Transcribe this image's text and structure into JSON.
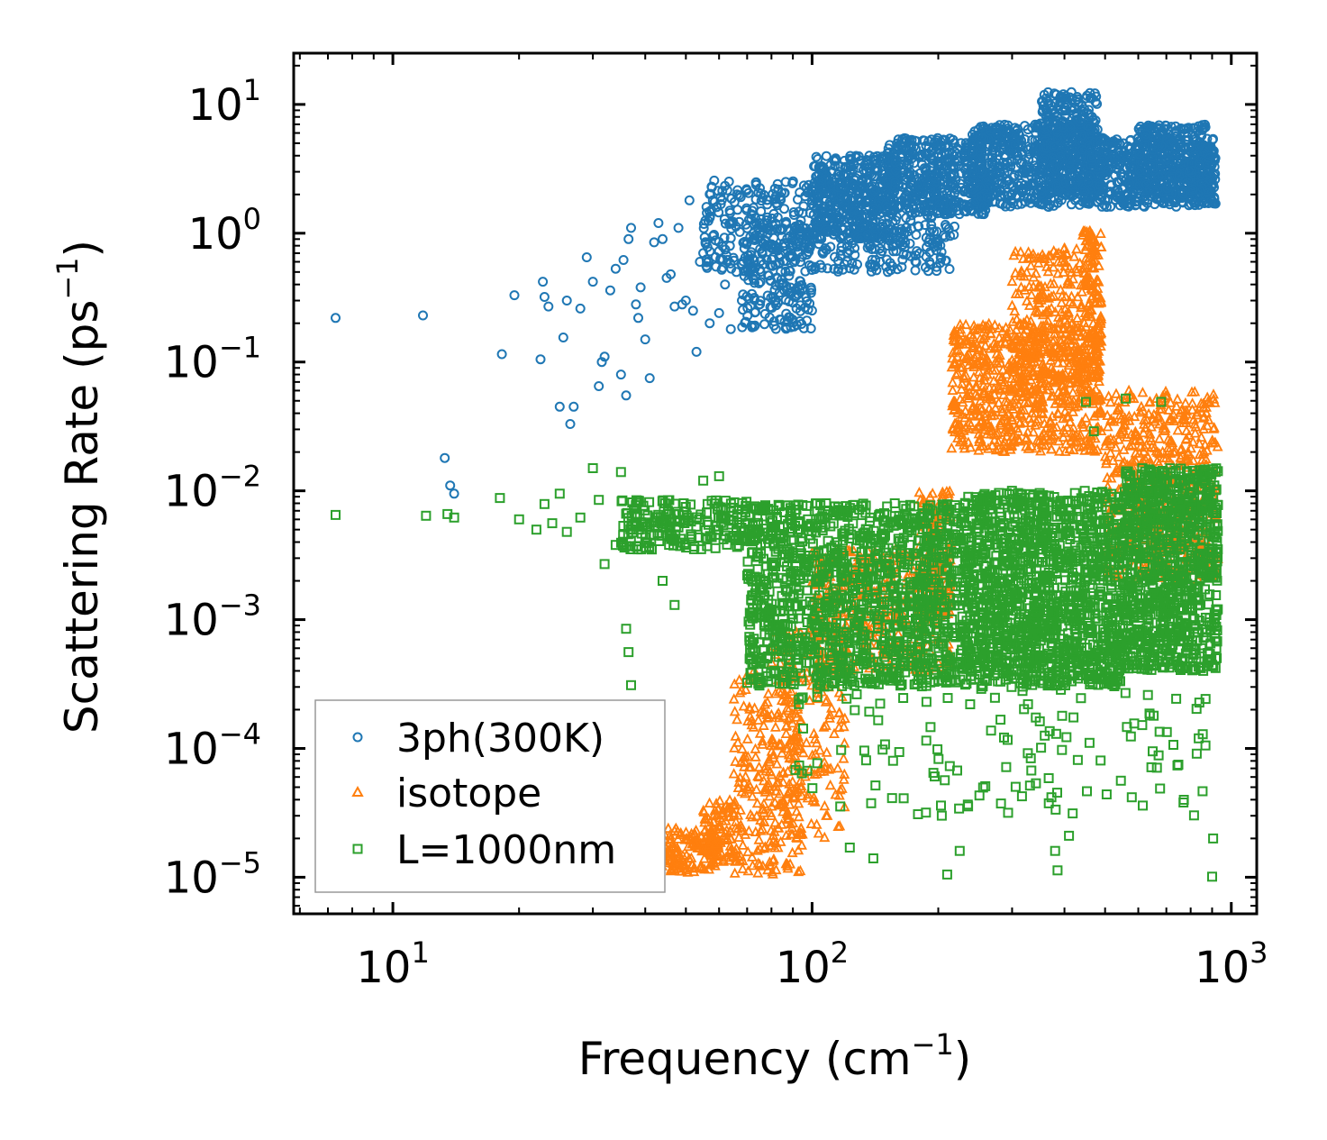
{
  "chart_data": {
    "type": "scatter",
    "xlabel": "Frequency (cm",
    "xlabel_sup": "−1",
    "xlabel_end": ")",
    "ylabel": "Scattering Rate (ps",
    "ylabel_sup": "−1",
    "ylabel_end": ")",
    "xscale": "log",
    "yscale": "log",
    "xlim": [
      5.8,
      1150
    ],
    "ylim": [
      5.2e-06,
      25
    ],
    "x_ticks": [
      {
        "value": 10,
        "base": "10",
        "exp": "1"
      },
      {
        "value": 100,
        "base": "10",
        "exp": "2"
      },
      {
        "value": 1000,
        "base": "10",
        "exp": "3"
      }
    ],
    "y_ticks": [
      {
        "value": 10,
        "base": "10",
        "exp": "1"
      },
      {
        "value": 1,
        "base": "10",
        "exp": "0"
      },
      {
        "value": 0.1,
        "base": "10",
        "exp": "−1"
      },
      {
        "value": 0.01,
        "base": "10",
        "exp": "−2"
      },
      {
        "value": 0.001,
        "base": "10",
        "exp": "−3"
      },
      {
        "value": 0.0001,
        "base": "10",
        "exp": "−4"
      },
      {
        "value": 1e-05,
        "base": "10",
        "exp": "−5"
      }
    ],
    "legend_position": "bottom-left",
    "series": [
      {
        "name": "3ph(300K)",
        "marker": "circle",
        "color": "#1f77b4",
        "points": [
          [
            7.3,
            0.22
          ],
          [
            11.8,
            0.23
          ],
          [
            13.3,
            0.018
          ],
          [
            13.7,
            0.011
          ],
          [
            14.0,
            0.0095
          ],
          [
            18.2,
            0.115
          ],
          [
            19.5,
            0.33
          ],
          [
            22.5,
            0.105
          ],
          [
            22.8,
            0.42
          ],
          [
            23.0,
            0.32
          ],
          [
            23.5,
            0.27
          ],
          [
            25,
            0.045
          ],
          [
            25.5,
            0.155
          ],
          [
            26,
            0.3
          ],
          [
            26.5,
            0.033
          ],
          [
            27,
            0.045
          ],
          [
            28,
            0.26
          ],
          [
            29,
            0.65
          ],
          [
            30,
            0.42
          ],
          [
            31,
            0.065
          ],
          [
            31.5,
            0.1
          ],
          [
            32,
            0.11
          ],
          [
            33,
            0.36
          ],
          [
            34,
            0.53
          ],
          [
            35,
            0.08
          ],
          [
            35.5,
            0.62
          ],
          [
            36,
            0.055
          ],
          [
            36.5,
            0.9
          ],
          [
            37,
            1.1
          ],
          [
            38,
            0.28
          ],
          [
            38.5,
            0.22
          ],
          [
            39,
            0.38
          ],
          [
            40,
            0.15
          ],
          [
            41,
            0.075
          ],
          [
            42,
            0.85
          ],
          [
            43,
            1.2
          ],
          [
            44,
            0.9
          ],
          [
            45,
            0.45
          ],
          [
            46,
            0.48
          ],
          [
            47,
            0.27
          ],
          [
            48,
            1.1
          ],
          [
            49,
            0.28
          ],
          [
            50,
            0.3
          ],
          [
            51,
            1.8
          ],
          [
            52,
            0.25
          ],
          [
            53,
            0.12
          ],
          [
            54,
            0.6
          ],
          [
            55,
            0.7
          ],
          [
            56,
            1.6
          ],
          [
            57,
            0.2
          ],
          [
            58,
            0.95
          ],
          [
            59,
            0.55
          ],
          [
            60,
            0.24
          ],
          [
            62,
            0.4
          ],
          [
            64,
            0.18
          ],
          [
            66,
            0.5
          ],
          [
            68,
            0.3
          ],
          [
            70,
            0.85
          ]
        ],
        "bands": [
          {
            "x": [
              55,
              220
            ],
            "y": [
              0.5,
              2.6
            ],
            "n": 550
          },
          {
            "x": [
              68,
              100
            ],
            "y": [
              0.18,
              1.3
            ],
            "n": 200
          },
          {
            "x": [
              100,
              160
            ],
            "y": [
              0.9,
              4.0
            ],
            "n": 350
          },
          {
            "x": [
              150,
              260
            ],
            "y": [
              1.4,
              5.5
            ],
            "n": 400
          },
          {
            "x": [
              240,
              480
            ],
            "y": [
              1.6,
              7.0
            ],
            "n": 600
          },
          {
            "x": [
              350,
              480
            ],
            "y": [
              2.0,
              12.5
            ],
            "n": 320
          },
          {
            "x": [
              480,
              920
            ],
            "y": [
              1.6,
              5.5
            ],
            "n": 550
          },
          {
            "x": [
              600,
              920
            ],
            "y": [
              2.0,
              7.0
            ],
            "n": 220
          }
        ]
      },
      {
        "name": "isotope",
        "marker": "triangle",
        "color": "#ff7f0e",
        "points": [],
        "bands": [
          {
            "x": [
              42,
              60
            ],
            "y": [
              1.08e-05,
              2.4e-05
            ],
            "n": 160
          },
          {
            "x": [
              55,
              68
            ],
            "y": [
              1.3e-05,
              4e-05
            ],
            "n": 110
          },
          {
            "x": [
              65,
              95
            ],
            "y": [
              1e-05,
              0.0004
            ],
            "n": 260
          },
          {
            "x": [
              80,
              120
            ],
            "y": [
              2e-05,
              0.0009
            ],
            "n": 180
          },
          {
            "x": [
              100,
              215
            ],
            "y": [
              0.0004,
              0.0035
            ],
            "n": 380
          },
          {
            "x": [
              180,
              215
            ],
            "y": [
              0.001,
              0.01
            ],
            "n": 120
          },
          {
            "x": [
              215,
              490
            ],
            "y": [
              0.02,
              0.2
            ],
            "n": 700
          },
          {
            "x": [
              300,
              490
            ],
            "y": [
              0.05,
              0.8
            ],
            "n": 300
          },
          {
            "x": [
              440,
              490
            ],
            "y": [
              0.1,
              1.1
            ],
            "n": 90
          },
          {
            "x": [
              500,
              930
            ],
            "y": [
              0.002,
              0.06
            ],
            "n": 550
          }
        ]
      },
      {
        "name": "L=1000nm",
        "marker": "square",
        "color": "#2ca02c",
        "points": [
          [
            7.3,
            0.0065
          ],
          [
            12,
            0.0064
          ],
          [
            13.5,
            0.0066
          ],
          [
            14,
            0.0062
          ],
          [
            18,
            0.0088
          ],
          [
            20,
            0.006
          ],
          [
            22,
            0.005
          ],
          [
            23,
            0.0079
          ],
          [
            24,
            0.0056
          ],
          [
            25,
            0.0095
          ],
          [
            26,
            0.0048
          ],
          [
            28,
            0.0062
          ],
          [
            30,
            0.015
          ],
          [
            31,
            0.0085
          ],
          [
            32,
            0.0027
          ],
          [
            34,
            0.0038
          ],
          [
            35,
            0.014
          ],
          [
            36,
            0.00085
          ],
          [
            36.5,
            0.00056
          ],
          [
            37,
            0.00031
          ],
          [
            40,
            0.0055
          ],
          [
            42,
            0.0045
          ],
          [
            44,
            0.002
          ],
          [
            47,
            0.0013
          ],
          [
            50,
            0.0075
          ],
          [
            55,
            0.012
          ],
          [
            60,
            0.013
          ],
          [
            65,
            0.0059
          ],
          [
            140,
            1.4e-05
          ],
          [
            123,
            1.7e-05
          ],
          [
            210,
            1.05e-05
          ],
          [
            225,
            1.6e-05
          ],
          [
            380,
            1.6e-05
          ],
          [
            385,
            1.13e-05
          ],
          [
            410,
            2.1e-05
          ],
          [
            900,
            1.01e-05
          ],
          [
            905,
            2e-05
          ],
          [
            450,
            0.049
          ],
          [
            470,
            0.029
          ],
          [
            560,
            0.052
          ],
          [
            680,
            0.049
          ]
        ],
        "bands": [
          {
            "x": [
              35,
              70
            ],
            "y": [
              0.0035,
              0.0085
            ],
            "n": 200
          },
          {
            "x": [
              70,
              230
            ],
            "y": [
              0.0003,
              0.008
            ],
            "n": 1300
          },
          {
            "x": [
              230,
              560
            ],
            "y": [
              0.0003,
              0.01
            ],
            "n": 1400
          },
          {
            "x": [
              560,
              930
            ],
            "y": [
              0.0004,
              0.015
            ],
            "n": 900
          },
          {
            "x": [
              90,
              900
            ],
            "y": [
              3e-05,
              0.0003
            ],
            "n": 130
          }
        ]
      }
    ]
  }
}
